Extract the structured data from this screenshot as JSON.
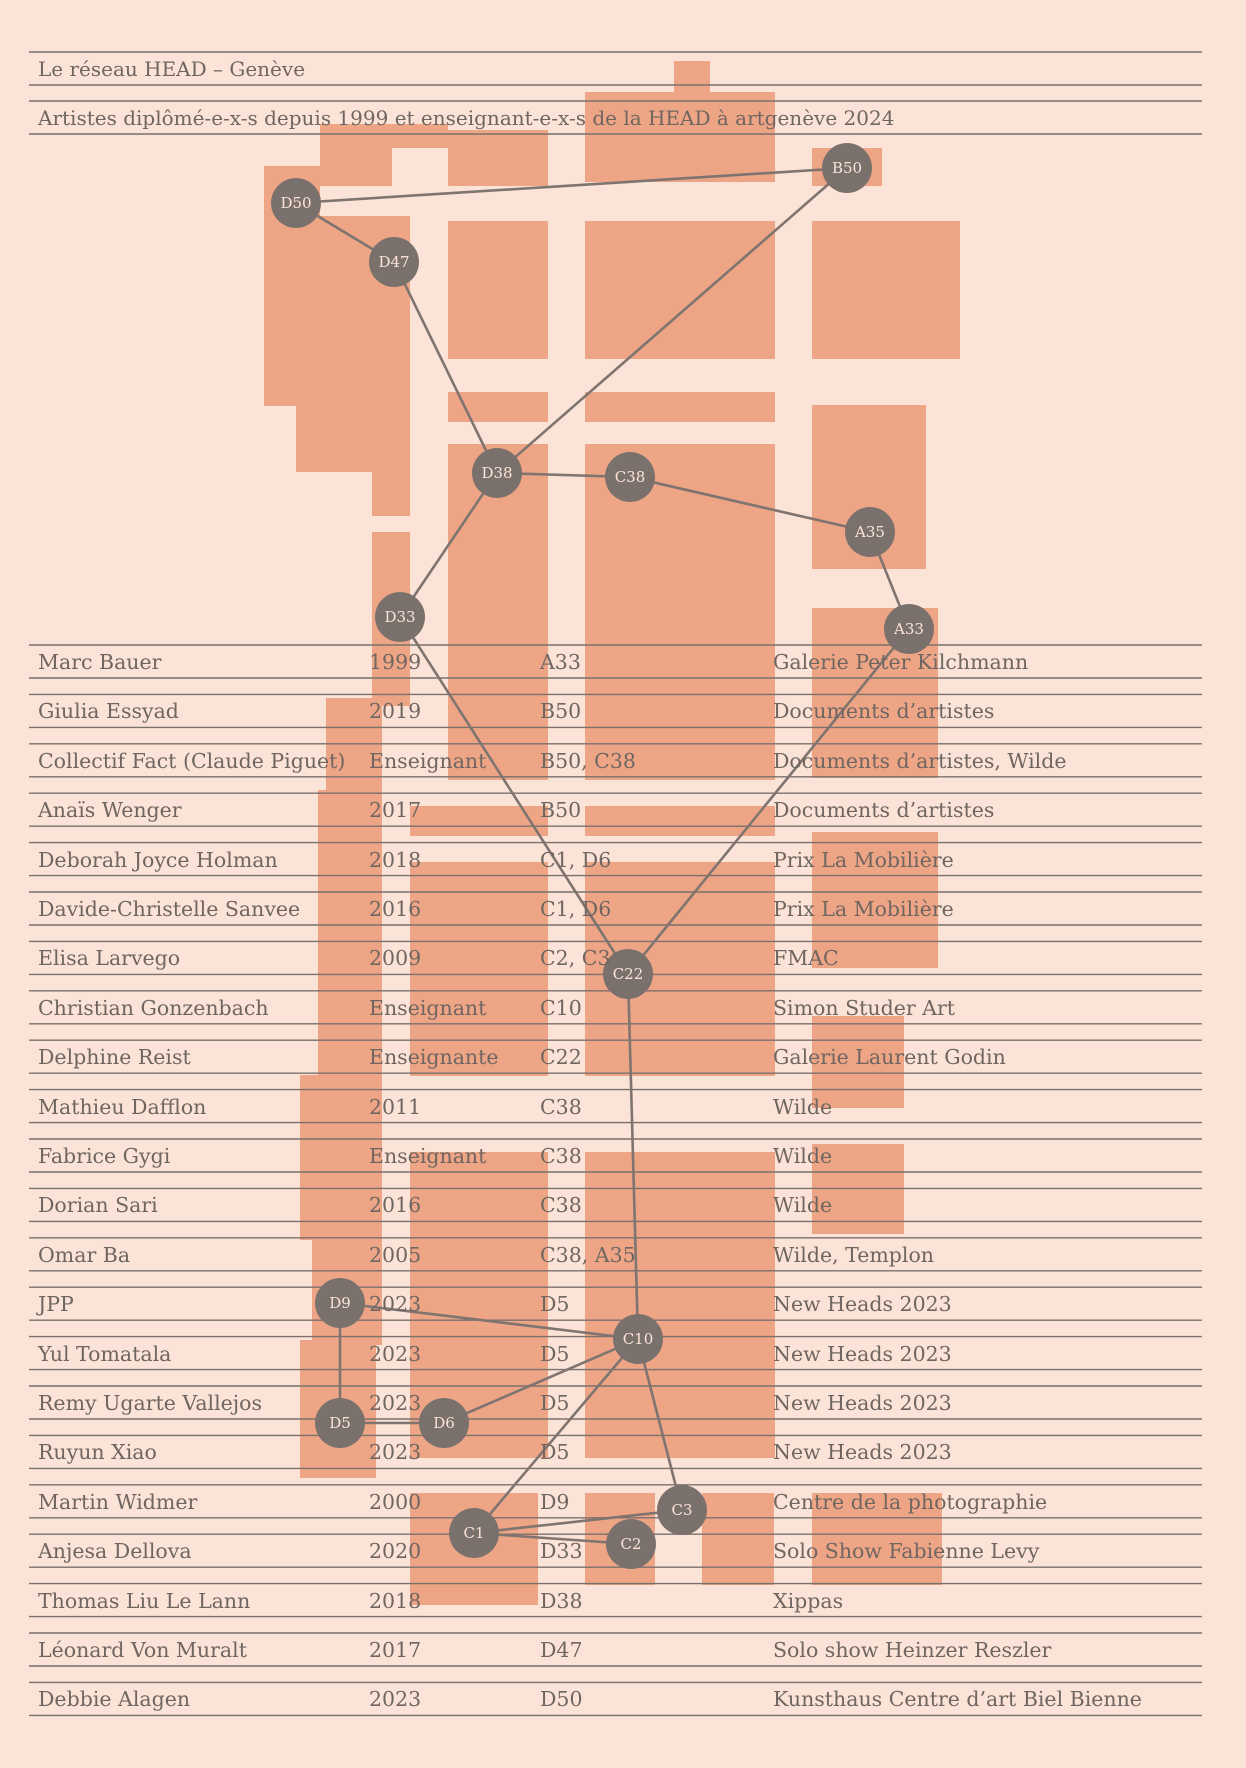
{
  "header": {
    "title": "Le réseau HEAD – Genève",
    "subtitle": "Artistes diplômé-e-x-s depuis 1999 et enseignant-e-x-s de la HEAD à artgenève 2024"
  },
  "colors": {
    "background": "#fbe3d7",
    "booth": "#eea586",
    "node": "#7b716c",
    "line": "#7f7470"
  },
  "nodes": [
    {
      "id": "D50",
      "label": "D50"
    },
    {
      "id": "B50",
      "label": "B50"
    },
    {
      "id": "D47",
      "label": "D47"
    },
    {
      "id": "D38",
      "label": "D38"
    },
    {
      "id": "C38",
      "label": "C38"
    },
    {
      "id": "A35",
      "label": "A35"
    },
    {
      "id": "D33",
      "label": "D33"
    },
    {
      "id": "A33",
      "label": "A33"
    },
    {
      "id": "C22",
      "label": "C22"
    },
    {
      "id": "D9",
      "label": "D9"
    },
    {
      "id": "C10",
      "label": "C10"
    },
    {
      "id": "D5",
      "label": "D5"
    },
    {
      "id": "D6",
      "label": "D6"
    },
    {
      "id": "C3",
      "label": "C3"
    },
    {
      "id": "C1",
      "label": "C1"
    },
    {
      "id": "C2",
      "label": "C2"
    }
  ],
  "edges": [
    [
      "D50",
      "B50"
    ],
    [
      "D50",
      "D47"
    ],
    [
      "D47",
      "D38"
    ],
    [
      "B50",
      "D38"
    ],
    [
      "D38",
      "C38"
    ],
    [
      "C38",
      "A35"
    ],
    [
      "A35",
      "A33"
    ],
    [
      "D38",
      "D33"
    ],
    [
      "D33",
      "C22"
    ],
    [
      "A33",
      "C22"
    ],
    [
      "C22",
      "C10"
    ],
    [
      "D9",
      "C10"
    ],
    [
      "D9",
      "D5"
    ],
    [
      "D5",
      "D6"
    ],
    [
      "D6",
      "C10"
    ],
    [
      "C10",
      "C3"
    ],
    [
      "C10",
      "C1"
    ],
    [
      "C1",
      "C3"
    ],
    [
      "C1",
      "C2"
    ]
  ],
  "rows": [
    {
      "name": "Marc Bauer",
      "year": "1999",
      "stand": "A33",
      "gallery": "Galerie Peter Kilchmann"
    },
    {
      "name": "Giulia Essyad",
      "year": "2019",
      "stand": "B50",
      "gallery": "Documents d’artistes"
    },
    {
      "name": "Collectif Fact (Claude Piguet)",
      "year": "Enseignant",
      "stand": "B50, C38",
      "gallery": "Documents d’artistes, Wilde"
    },
    {
      "name": "Anaïs Wenger",
      "year": "2017",
      "stand": "B50",
      "gallery": "Documents d’artistes"
    },
    {
      "name": "Deborah Joyce Holman",
      "year": "2018",
      "stand": "C1, D6",
      "gallery": "Prix La Mobilière"
    },
    {
      "name": "Davide-Christelle Sanvee",
      "year": "2016",
      "stand": "C1, D6",
      "gallery": "Prix La Mobilière"
    },
    {
      "name": "Elisa Larvego",
      "year": "2009",
      "stand": "C2, C3",
      "gallery": "FMAC"
    },
    {
      "name": "Christian Gonzenbach",
      "year": "Enseignant",
      "stand": "C10",
      "gallery": "Simon Studer Art"
    },
    {
      "name": "Delphine Reist",
      "year": "Enseignante",
      "stand": "C22",
      "gallery": "Galerie Laurent Godin"
    },
    {
      "name": "Mathieu Dafflon",
      "year": "2011",
      "stand": "C38",
      "gallery": "Wilde"
    },
    {
      "name": "Fabrice Gygi",
      "year": "Enseignant",
      "stand": "C38",
      "gallery": "Wilde"
    },
    {
      "name": "Dorian Sari",
      "year": "2016",
      "stand": "C38",
      "gallery": "Wilde"
    },
    {
      "name": "Omar Ba",
      "year": "2005",
      "stand": "C38, A35",
      "gallery": "Wilde, Templon"
    },
    {
      "name": "JPP",
      "year": "2023",
      "stand": "D5",
      "gallery": "New Heads 2023"
    },
    {
      "name": "Yul Tomatala",
      "year": "2023",
      "stand": "D5",
      "gallery": "New Heads 2023"
    },
    {
      "name": "Remy Ugarte Vallejos",
      "year": "2023",
      "stand": "D5",
      "gallery": "New Heads 2023"
    },
    {
      "name": "Ruyun Xiao",
      "year": "2023",
      "stand": "D5",
      "gallery": "New Heads 2023"
    },
    {
      "name": "Martin Widmer",
      "year": "2000",
      "stand": "D9",
      "gallery": "Centre de la photographie"
    },
    {
      "name": "Anjesa Dellova",
      "year": "2020",
      "stand": "D33",
      "gallery": "Solo Show Fabienne Levy"
    },
    {
      "name": "Thomas Liu Le Lann",
      "year": "2018",
      "stand": "D38",
      "gallery": "Xippas"
    },
    {
      "name": "Léonard Von Muralt",
      "year": "2017",
      "stand": "D47",
      "gallery": "Solo show Heinzer Reszler"
    },
    {
      "name": "Debbie Alagen",
      "year": "2023",
      "stand": "D50",
      "gallery": "Kunsthaus Centre d’art Biel Bienne"
    }
  ]
}
